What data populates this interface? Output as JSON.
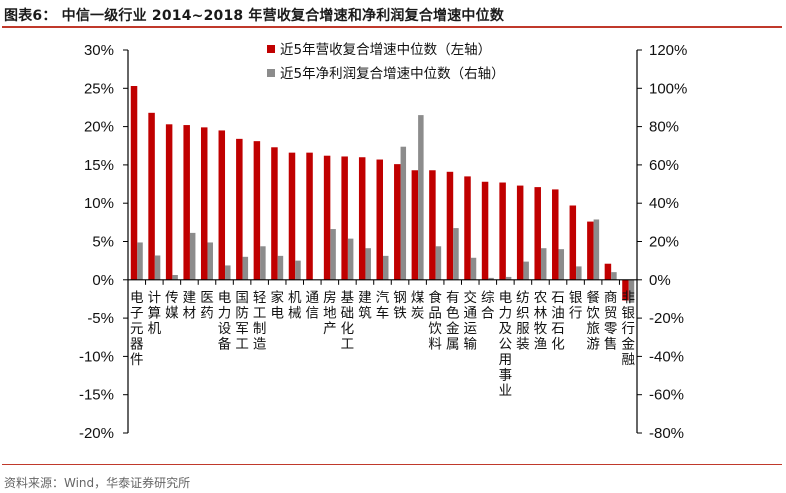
{
  "header": {
    "title": "图表6：  中信一级行业 2014~2018 年营收复合增速和净利润复合增速中位数"
  },
  "footer": {
    "source": "资料来源：Wind，华泰证券研究所"
  },
  "colors": {
    "series_revenue": "#c00000",
    "series_profit": "#8c8c8c",
    "accent_line": "#c0392b"
  },
  "chart_data": {
    "type": "bar",
    "title": "中信一级行业 2014~2018 年营收复合增速和净利润复合增速中位数",
    "xlabel": "",
    "ylabel": "",
    "legend_position": "top-right (inside plot)",
    "grid": false,
    "categories": [
      "电子元器件",
      "计算机",
      "传媒",
      "建材",
      "医药",
      "电力设备",
      "国防军工",
      "轻工制造",
      "家电",
      "机械",
      "通信",
      "房地产",
      "基础化工",
      "建筑",
      "汽车",
      "钢铁",
      "煤炭",
      "食品饮料",
      "有色金属",
      "交通运输",
      "综合",
      "电力及公用事业",
      "纺织服装",
      "农林牧渔",
      "石油石化",
      "银行",
      "餐饮旅游",
      "商贸零售",
      "非银行金融"
    ],
    "series": [
      {
        "name": "近5年营收复合增速中位数（左轴）",
        "axis": "left",
        "values": [
          25.3,
          21.8,
          20.3,
          20.2,
          19.9,
          19.5,
          18.4,
          18.1,
          17.3,
          16.6,
          16.6,
          16.2,
          16.1,
          16.0,
          15.7,
          15.1,
          14.3,
          14.3,
          14.1,
          13.5,
          12.8,
          12.7,
          12.3,
          12.1,
          11.8,
          9.7,
          7.6,
          2.1,
          -2.7
        ]
      },
      {
        "name": "近5年净利润复合增速中位数（右轴）",
        "axis": "right",
        "values": [
          19.5,
          12.7,
          2.5,
          24.5,
          19.5,
          7.5,
          12.0,
          17.5,
          12.5,
          10.0,
          0.0,
          26.5,
          21.5,
          16.5,
          12.5,
          69.5,
          86.0,
          17.5,
          27.0,
          11.5,
          1.0,
          1.5,
          9.5,
          16.5,
          16.0,
          7.0,
          31.5,
          4.0,
          -12.0
        ]
      }
    ],
    "left_axis": {
      "ylim": [
        -20,
        30
      ],
      "ticks": [
        "30%",
        "25%",
        "20%",
        "15%",
        "10%",
        "5%",
        "0%",
        "-5%",
        "-10%",
        "-15%",
        "-20%"
      ],
      "tick_values": [
        30,
        25,
        20,
        15,
        10,
        5,
        0,
        -5,
        -10,
        -15,
        -20
      ]
    },
    "right_axis": {
      "ylim": [
        -80,
        120
      ],
      "ticks": [
        "120%",
        "100%",
        "80%",
        "60%",
        "40%",
        "20%",
        "0%",
        "-20%",
        "-40%",
        "-60%",
        "-80%"
      ],
      "tick_values": [
        120,
        100,
        80,
        60,
        40,
        20,
        0,
        -20,
        -40,
        -60,
        -80
      ]
    }
  }
}
